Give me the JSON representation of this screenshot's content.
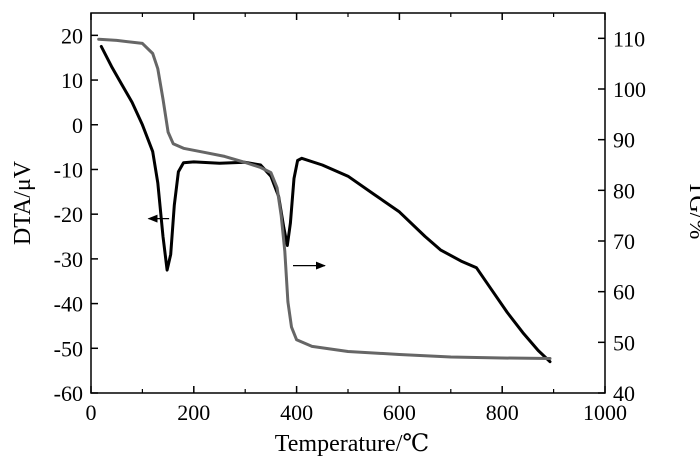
{
  "chart_data": {
    "type": "line",
    "xlabel": "Temperature/℃",
    "ylabel_left": "DTA/μV",
    "ylabel_right": "TG/%",
    "xlim": [
      0,
      1000
    ],
    "ylim_left": [
      -60,
      25
    ],
    "ylim_right": [
      40,
      115
    ],
    "x_ticks": [
      0,
      200,
      400,
      600,
      800,
      1000
    ],
    "y_left_ticks": [
      -60,
      -50,
      -40,
      -30,
      -20,
      -10,
      0,
      10,
      20
    ],
    "y_right_ticks": [
      40,
      50,
      60,
      70,
      80,
      90,
      100,
      110
    ],
    "grid": false,
    "series": [
      {
        "axis": "left",
        "color": "#000000",
        "points": [
          [
            20,
            17.5
          ],
          [
            40,
            13
          ],
          [
            60,
            9
          ],
          [
            80,
            5
          ],
          [
            100,
            0
          ],
          [
            120,
            -6
          ],
          [
            130,
            -13
          ],
          [
            140,
            -25
          ],
          [
            148,
            -32.5
          ],
          [
            155,
            -29
          ],
          [
            162,
            -18
          ],
          [
            170,
            -10.5
          ],
          [
            180,
            -8.5
          ],
          [
            200,
            -8.3
          ],
          [
            250,
            -8.6
          ],
          [
            300,
            -8.4
          ],
          [
            330,
            -9
          ],
          [
            350,
            -11.5
          ],
          [
            365,
            -16
          ],
          [
            375,
            -23
          ],
          [
            382,
            -27
          ],
          [
            388,
            -22
          ],
          [
            395,
            -12
          ],
          [
            402,
            -8
          ],
          [
            410,
            -7.5
          ],
          [
            450,
            -9
          ],
          [
            500,
            -11.5
          ],
          [
            550,
            -15.5
          ],
          [
            600,
            -19.5
          ],
          [
            650,
            -25
          ],
          [
            680,
            -28
          ],
          [
            720,
            -30.5
          ],
          [
            750,
            -32
          ],
          [
            780,
            -37
          ],
          [
            810,
            -42
          ],
          [
            840,
            -46.5
          ],
          [
            870,
            -50.5
          ],
          [
            893,
            -53
          ]
        ]
      },
      {
        "axis": "right",
        "color": "#666666",
        "points": [
          [
            15,
            109.8
          ],
          [
            50,
            109.6
          ],
          [
            100,
            109
          ],
          [
            120,
            107
          ],
          [
            130,
            104
          ],
          [
            140,
            98
          ],
          [
            150,
            91.5
          ],
          [
            160,
            89.2
          ],
          [
            180,
            88.3
          ],
          [
            220,
            87.5
          ],
          [
            260,
            86.7
          ],
          [
            300,
            85.5
          ],
          [
            330,
            84.5
          ],
          [
            350,
            83.5
          ],
          [
            362,
            80.5
          ],
          [
            370,
            75
          ],
          [
            377,
            68
          ],
          [
            383,
            58
          ],
          [
            390,
            53
          ],
          [
            400,
            50.5
          ],
          [
            430,
            49.2
          ],
          [
            500,
            48.2
          ],
          [
            600,
            47.6
          ],
          [
            700,
            47.1
          ],
          [
            800,
            46.9
          ],
          [
            893,
            46.8
          ]
        ]
      }
    ],
    "annotations": [
      {
        "arrow_from": [
          152,
          -21
        ],
        "arrow_to": [
          112,
          -21
        ],
        "points_to": "left axis (DTA)"
      },
      {
        "arrow_from": [
          393,
          -31.5
        ],
        "arrow_to": [
          455,
          -31.5
        ],
        "points_to": "right axis (TG)"
      }
    ]
  }
}
